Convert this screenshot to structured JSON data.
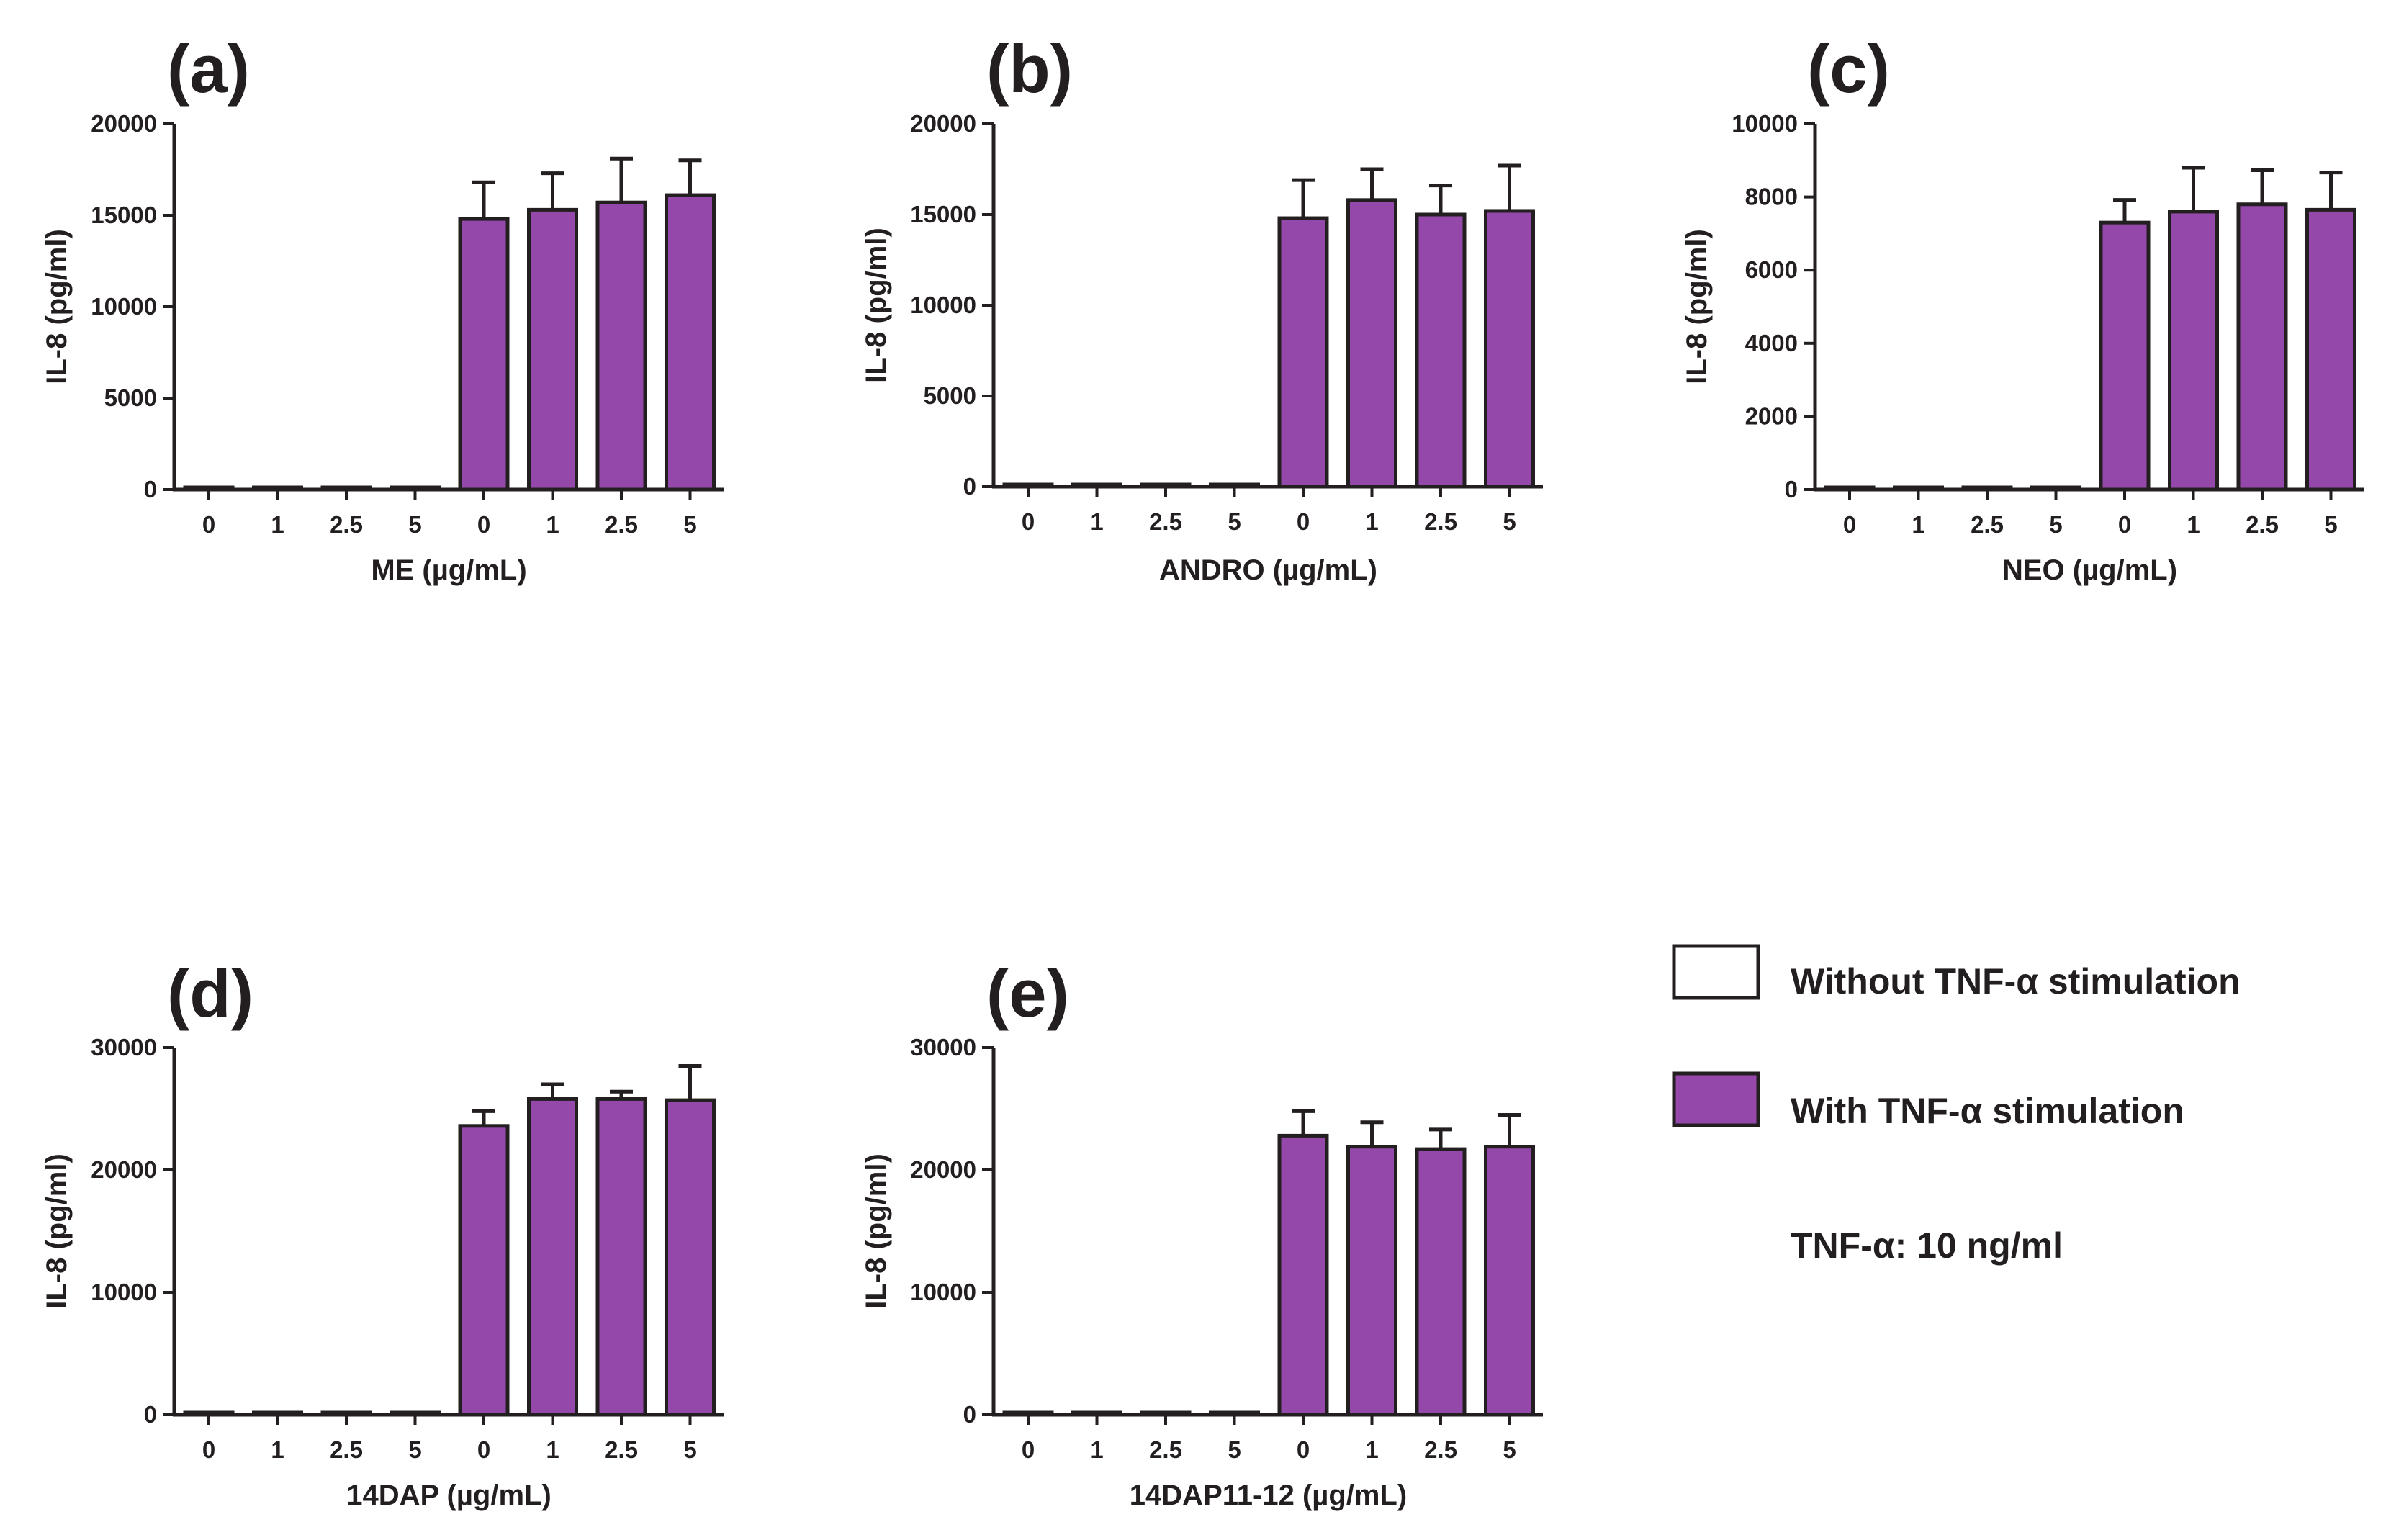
{
  "legend": {
    "without_label": "Without TNF-α stimulation",
    "with_label": "With TNF-α stimulation",
    "note": "TNF-α: 10 ng/ml",
    "without_color": "#ffffff",
    "with_color": "#9449aa",
    "edge_color": "#231f20"
  },
  "chart_data": [
    {
      "type": "bar",
      "panel": "(a)",
      "categories": [
        "0",
        "1",
        "2.5",
        "5",
        "0",
        "1",
        "2.5",
        "5"
      ],
      "series": [
        {
          "name": "Without TNF-α stimulation",
          "values": [
            0,
            50,
            0,
            40,
            null,
            null,
            null,
            null
          ],
          "errors": [
            0,
            0,
            0,
            0,
            null,
            null,
            null,
            null
          ]
        },
        {
          "name": "With TNF-α stimulation",
          "values": [
            null,
            null,
            null,
            null,
            14800,
            15300,
            15700,
            16100
          ],
          "errors": [
            null,
            null,
            null,
            null,
            2000,
            2000,
            2400,
            1900
          ]
        }
      ],
      "xlabel": "ME (µg/mL)",
      "ylabel": "IL-8 (pg/ml)",
      "ylim": [
        0,
        20000
      ],
      "yticks": [
        "0",
        "5000",
        "10000",
        "15000",
        "20000"
      ]
    },
    {
      "type": "bar",
      "panel": "(b)",
      "categories": [
        "0",
        "1",
        "2.5",
        "5",
        "0",
        "1",
        "2.5",
        "5"
      ],
      "series": [
        {
          "name": "Without TNF-α stimulation",
          "values": [
            0,
            0,
            0,
            0,
            null,
            null,
            null,
            null
          ],
          "errors": [
            0,
            0,
            0,
            0,
            null,
            null,
            null,
            null
          ]
        },
        {
          "name": "With TNF-α stimulation",
          "values": [
            null,
            null,
            null,
            null,
            14800,
            15800,
            15000,
            15200
          ],
          "errors": [
            null,
            null,
            null,
            null,
            2100,
            1700,
            1600,
            2500
          ]
        }
      ],
      "xlabel": "ANDRO (µg/mL)",
      "ylabel": "IL-8 (pg/ml)",
      "ylim": [
        0,
        20000
      ],
      "yticks": [
        "0",
        "5000",
        "10000",
        "15000",
        "20000"
      ]
    },
    {
      "type": "bar",
      "panel": "(c)",
      "categories": [
        "0",
        "1",
        "2.5",
        "5",
        "0",
        "1",
        "2.5",
        "5"
      ],
      "series": [
        {
          "name": "Without TNF-α stimulation",
          "values": [
            40,
            20,
            40,
            30,
            null,
            null,
            null,
            null
          ],
          "errors": [
            0,
            0,
            0,
            0,
            null,
            null,
            null,
            null
          ]
        },
        {
          "name": "With TNF-α stimulation",
          "values": [
            null,
            null,
            null,
            null,
            7300,
            7600,
            7800,
            7650
          ],
          "errors": [
            null,
            null,
            null,
            null,
            620,
            1200,
            930,
            1020
          ]
        }
      ],
      "xlabel": "NEO (µg/mL)",
      "ylabel": "IL-8 (pg/ml)",
      "ylim": [
        0,
        10000
      ],
      "yticks": [
        "0",
        "2000",
        "4000",
        "6000",
        "8000",
        "10000"
      ]
    },
    {
      "type": "bar",
      "panel": "(d)",
      "categories": [
        "0",
        "1",
        "2.5",
        "5",
        "0",
        "1",
        "2.5",
        "5"
      ],
      "series": [
        {
          "name": "Without TNF-α stimulation",
          "values": [
            100,
            100,
            100,
            100,
            null,
            null,
            null,
            null
          ],
          "errors": [
            0,
            0,
            0,
            0,
            null,
            null,
            null,
            null
          ]
        },
        {
          "name": "With TNF-α stimulation",
          "values": [
            null,
            null,
            null,
            null,
            23600,
            25800,
            25800,
            25700
          ],
          "errors": [
            null,
            null,
            null,
            null,
            1200,
            1200,
            600,
            2800
          ]
        }
      ],
      "xlabel": "14DAP (µg/mL)",
      "ylabel": "IL-8 (pg/ml)",
      "ylim": [
        0,
        30000
      ],
      "yticks": [
        "0",
        "10000",
        "20000",
        "30000"
      ]
    },
    {
      "type": "bar",
      "panel": "(e)",
      "categories": [
        "0",
        "1",
        "2.5",
        "5",
        "0",
        "1",
        "2.5",
        "5"
      ],
      "series": [
        {
          "name": "Without TNF-α stimulation",
          "values": [
            100,
            100,
            100,
            100,
            null,
            null,
            null,
            null
          ],
          "errors": [
            0,
            0,
            0,
            0,
            null,
            null,
            null,
            null
          ]
        },
        {
          "name": "With TNF-α stimulation",
          "values": [
            null,
            null,
            null,
            null,
            22800,
            21900,
            21700,
            21900
          ],
          "errors": [
            null,
            null,
            null,
            null,
            2000,
            2000,
            1600,
            2600
          ]
        }
      ],
      "xlabel": "14DAP11-12 (µg/mL)",
      "ylabel": "IL-8 (pg/ml)",
      "ylim": [
        0,
        30000
      ],
      "yticks": [
        "0",
        "10000",
        "20000",
        "30000"
      ]
    }
  ]
}
